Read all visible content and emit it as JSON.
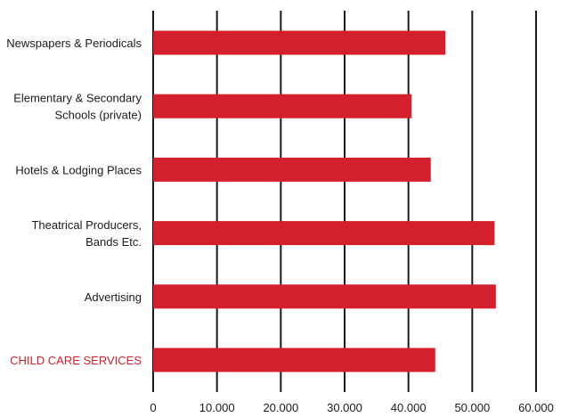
{
  "chart_data": {
    "type": "bar",
    "orientation": "horizontal",
    "categories": [
      [
        "Newspapers & Periodicals"
      ],
      [
        "Elementary & Secondary",
        "Schools (private)"
      ],
      [
        "Hotels & Lodging Places"
      ],
      [
        "Theatrical Producers,",
        "Bands Etc."
      ],
      [
        "Advertising"
      ],
      [
        "CHILD CARE SERVICES"
      ]
    ],
    "values": [
      45800,
      40500,
      43500,
      53500,
      53700,
      44200
    ],
    "highlight_index": 5,
    "xlim": [
      0,
      60000
    ],
    "x_ticks": [
      0,
      10000,
      20000,
      30000,
      40000,
      50000,
      60000
    ],
    "x_tick_labels": [
      "0",
      "10.000",
      "20.000",
      "30.000",
      "40.000",
      "50.000",
      "60.000"
    ],
    "grid": "vertical",
    "bar_color": "#d4202c",
    "highlight_label_color": "#d4202c",
    "grid_color": "#1a1a1a",
    "title": "",
    "xlabel": "",
    "ylabel": ""
  }
}
